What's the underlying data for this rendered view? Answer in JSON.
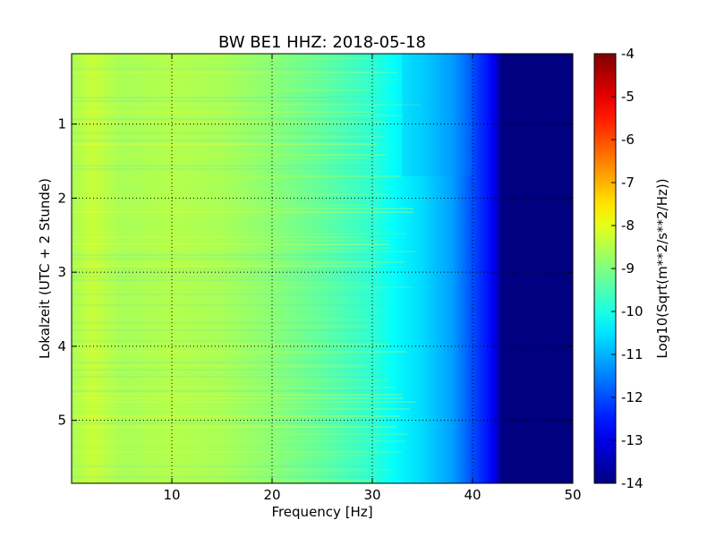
{
  "chart_data": {
    "type": "heatmap",
    "title": "BW BE1 HHZ: 2018-05-18",
    "xlabel": "Frequency [Hz]",
    "ylabel": "Lokalzeit (UTC + 2 Stunde)",
    "xlim": [
      0,
      50
    ],
    "ylim": [
      5.85,
      0.05
    ],
    "x_ticks": [
      "10",
      "20",
      "30",
      "40",
      "50"
    ],
    "y_ticks": [
      "1",
      "2",
      "3",
      "4",
      "5"
    ],
    "grid": true,
    "colormap": "jet",
    "colorbar": {
      "label": "Log10(Sqrt(m**2/s**2/Hz))",
      "range": [
        -14,
        -4
      ],
      "ticks": [
        "-4",
        "-5",
        "-6",
        "-7",
        "-8",
        "-9",
        "-10",
        "-11",
        "-12",
        "-13",
        "-14"
      ]
    },
    "frequency_profile": {
      "frequency_hz": [
        0,
        2,
        5,
        10,
        15,
        20,
        25,
        30,
        32,
        35,
        38,
        40,
        42,
        43,
        45,
        50
      ],
      "log10_amplitude": [
        -8.6,
        -8.3,
        -8.6,
        -8.5,
        -8.6,
        -8.9,
        -9.3,
        -9.8,
        -10.2,
        -10.6,
        -11.2,
        -12.0,
        -12.8,
        -14,
        -14,
        -14
      ]
    }
  }
}
